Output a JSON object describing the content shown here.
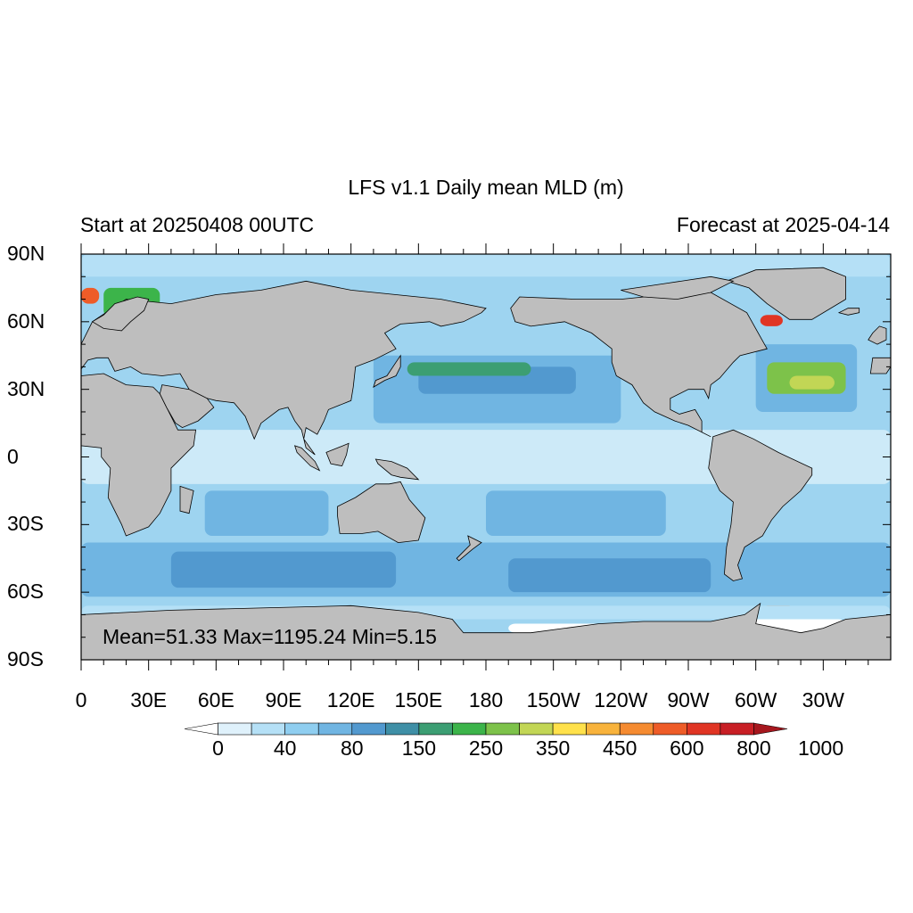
{
  "title": "LFS v1.1 Daily mean MLD (m)",
  "subtitle_left": "Start at 20250408 00UTC",
  "subtitle_right": "Forecast at 2025-04-14",
  "stats": "Mean=51.33  Max=1195.24  Min=5.15",
  "map": {
    "projection": "equirectangular",
    "lon_range": [
      0,
      360
    ],
    "lat_range": [
      -90,
      90
    ],
    "ocean_base_color": "#9ed4f0",
    "land_color": "#bebebe",
    "lat_labels": [
      "90N",
      "60N",
      "30N",
      "0",
      "30S",
      "60S",
      "90S"
    ],
    "lon_labels": [
      "0",
      "30E",
      "60E",
      "90E",
      "120E",
      "150E",
      "180",
      "150W",
      "120W",
      "90W",
      "60W",
      "30W"
    ]
  },
  "colorbar": {
    "colors": [
      "#ffffff",
      "#dff1fb",
      "#b5e0f6",
      "#8fcef0",
      "#70b5e2",
      "#5299cf",
      "#3f8fa6",
      "#3c9e73",
      "#3cb44a",
      "#7dc24a",
      "#c2d655",
      "#ffe14b",
      "#f8b33c",
      "#f58b31",
      "#ee5c28",
      "#e03524",
      "#c81f25",
      "#a6171e"
    ],
    "labels": [
      "0",
      "40",
      "80",
      "150",
      "250",
      "350",
      "450",
      "600",
      "800",
      "1000"
    ]
  }
}
